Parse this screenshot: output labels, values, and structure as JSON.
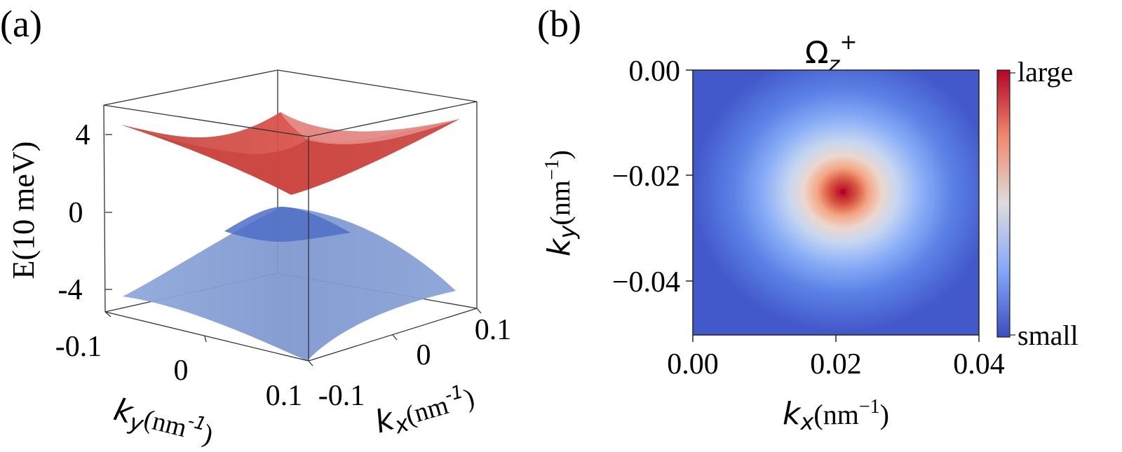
{
  "chart_data": [
    {
      "type": "surface",
      "panel_label": "(a)",
      "zlabel": "E(10 meV)",
      "zticks": [
        "4",
        "0",
        "-4"
      ],
      "zlim": [
        -5,
        5
      ],
      "xlabel": {
        "sym": "k",
        "sub": "x",
        "unit": "(nm",
        "exp": "-1",
        "close": ")"
      },
      "ylabel": {
        "sym": "k",
        "sub": "y",
        "unit": "(nm",
        "exp": "-1",
        "close": ")"
      },
      "xticks": [
        "-0.1",
        "0",
        "0.1"
      ],
      "yticks": [
        "-0.1",
        "0",
        "0.1"
      ],
      "xlim": [
        -0.1,
        0.1
      ],
      "ylim": [
        -0.1,
        0.1
      ],
      "series": [
        {
          "band": "conduction",
          "min_energy": 1,
          "color": "#d9534a"
        },
        {
          "band": "valence",
          "max_energy": -1,
          "color": "#7f9bd6"
        }
      ]
    },
    {
      "type": "heatmap",
      "panel_label": "(b)",
      "title": {
        "sym": "Ω",
        "sub": "z",
        "sup": "+"
      },
      "xlabel": {
        "sym": "k",
        "sub": "x",
        "unit": "(nm",
        "exp": "−1",
        "close": ")"
      },
      "ylabel": {
        "sym": "k",
        "sub": "y",
        "unit": "(nm",
        "exp": "−1",
        "close": ")"
      },
      "xticks": [
        "0.00",
        "0.02",
        "0.04"
      ],
      "yticks": [
        "0.00",
        "−0.02",
        "−0.04"
      ],
      "xlim": [
        0,
        0.04
      ],
      "ylim": [
        -0.05,
        0
      ],
      "peak": {
        "x": 0.021,
        "y": -0.023
      },
      "colorbar": {
        "max_label": "large",
        "min_label": "small",
        "colormap": "coolwarm"
      }
    }
  ]
}
